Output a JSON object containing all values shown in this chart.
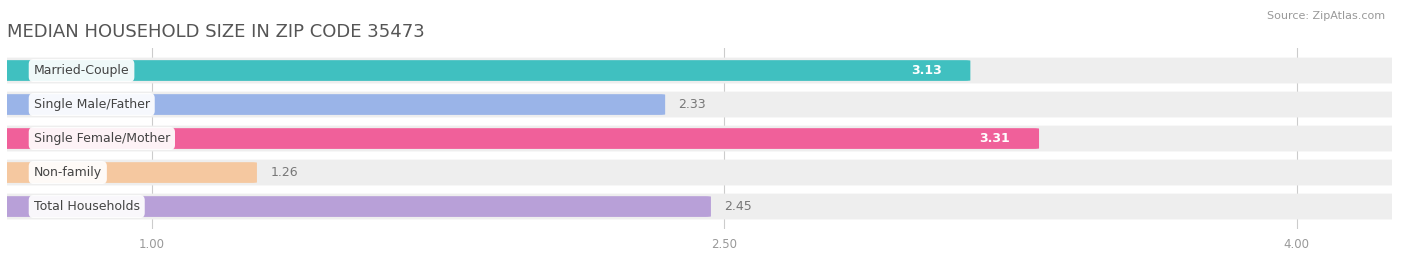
{
  "title": "MEDIAN HOUSEHOLD SIZE IN ZIP CODE 35473",
  "source": "Source: ZipAtlas.com",
  "categories": [
    "Married-Couple",
    "Single Male/Father",
    "Single Female/Mother",
    "Non-family",
    "Total Households"
  ],
  "values": [
    3.13,
    2.33,
    3.31,
    1.26,
    2.45
  ],
  "value_labels": [
    "3.13",
    "2.33",
    "3.31",
    "1.26",
    "2.45"
  ],
  "bar_colors": [
    "#40c0c0",
    "#9ab4e8",
    "#f0609a",
    "#f5c8a0",
    "#b8a0d8"
  ],
  "xlim_min": 0.62,
  "xlim_max": 4.25,
  "xticks": [
    1.0,
    2.5,
    4.0
  ],
  "xtick_labels": [
    "1.00",
    "2.50",
    "4.00"
  ],
  "title_fontsize": 13,
  "label_fontsize": 9,
  "value_fontsize": 9,
  "bg_color": "#ffffff",
  "bar_height": 0.58,
  "bg_bar_color": "#eeeeee",
  "value_colors": [
    "#ffffff",
    "#777777",
    "#ffffff",
    "#777777",
    "#777777"
  ],
  "value_inside": [
    true,
    false,
    true,
    false,
    false
  ]
}
